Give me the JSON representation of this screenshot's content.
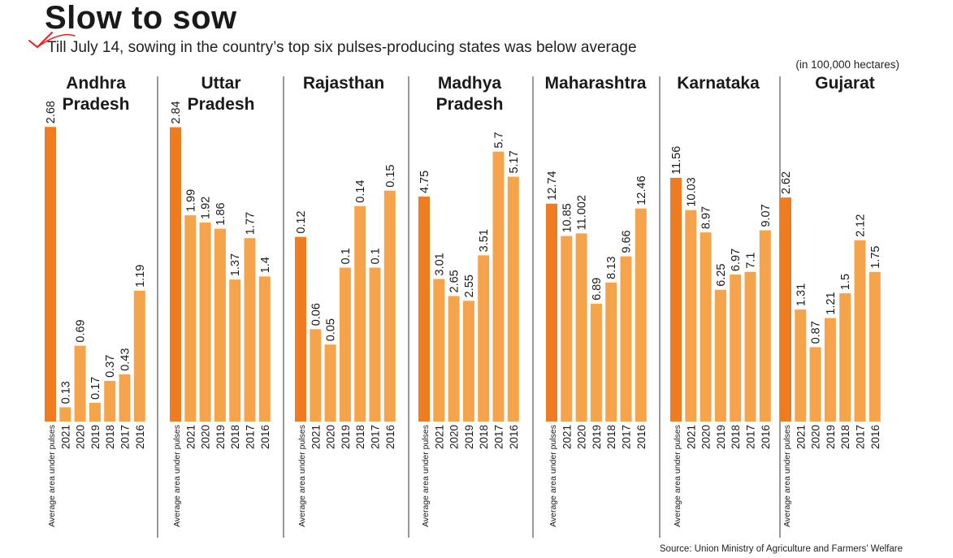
{
  "header": {
    "title": "Slow to sow",
    "subtitle": "Till July 14, sowing in the country’s top six pulses-producing states was below average",
    "unit_note": "(in 100,000 hectares)",
    "source": "Source: Union Ministry of Agriculture and Farmers’ Welfare"
  },
  "colors": {
    "average_bar": "#f07c22",
    "year_bar": "#f5a44b",
    "divider": "#333333",
    "annotation_tick": "#e8211f"
  },
  "chart_data": {
    "type": "bar",
    "title": "Slow to sow",
    "subtitle": "Till July 14, sowing in the country’s top six pulses-producing states was below average",
    "ylabel": "(in 100,000 hectares)",
    "categories": [
      "Average area under pulses",
      "2021",
      "2020",
      "2019",
      "2018",
      "2017",
      "2016"
    ],
    "grid": false,
    "panels": [
      {
        "name": "Andhra Pradesh",
        "title_lines": [
          "Andhra",
          "Pradesh"
        ],
        "values": [
          2.68,
          0.13,
          0.69,
          0.17,
          0.37,
          0.43,
          1.19
        ],
        "labels": [
          "2.68",
          "0.13",
          "0.69",
          "0.17",
          "0.37",
          "0.43",
          "1.19"
        ],
        "ylim": [
          0,
          2.8
        ]
      },
      {
        "name": "Uttar Pradesh",
        "title_lines": [
          "Uttar",
          "Pradesh"
        ],
        "values": [
          2.84,
          1.99,
          1.92,
          1.86,
          1.37,
          1.77,
          1.4
        ],
        "labels": [
          "2.84",
          "1.99",
          "1.92",
          "1.86",
          "1.37",
          "1.77",
          "1.4"
        ],
        "ylim": [
          0,
          2.97
        ]
      },
      {
        "name": "Rajasthan",
        "title_lines": [
          "Rajasthan"
        ],
        "values": [
          0.12,
          0.06,
          0.05,
          0.1,
          0.14,
          0.1,
          0.15
        ],
        "labels": [
          "0.12",
          "0.06",
          "0.05",
          "0.1",
          "0.14",
          "0.1",
          "0.15"
        ],
        "ylim": [
          0,
          0.2
        ]
      },
      {
        "name": "Madhya Pradesh",
        "title_lines": [
          "Madhya",
          "Pradesh"
        ],
        "values": [
          4.75,
          3.01,
          2.65,
          2.55,
          3.51,
          5.7,
          5.17
        ],
        "labels": [
          "4.75",
          "3.01",
          "2.65",
          "2.55",
          "3.51",
          "5.7",
          "5.17"
        ],
        "ylim": [
          0,
          6.5
        ]
      },
      {
        "name": "Maharashtra",
        "title_lines": [
          "Maharashtra"
        ],
        "values": [
          12.74,
          10.85,
          11.002,
          6.89,
          8.13,
          9.66,
          12.46
        ],
        "labels": [
          "12.74",
          "10.85",
          "11.002",
          "6.89",
          "8.13",
          "9.66",
          "12.46"
        ],
        "ylim": [
          0,
          18
        ]
      },
      {
        "name": "Karnataka",
        "title_lines": [
          "Karnataka"
        ],
        "values": [
          11.56,
          10.03,
          8.97,
          6.25,
          6.97,
          7.1,
          9.07
        ],
        "labels": [
          "11.56",
          "10.03",
          "8.97",
          "6.25",
          "6.97",
          "7.1",
          "9.07"
        ],
        "ylim": [
          0,
          14.6
        ]
      },
      {
        "name": "Gujarat",
        "title_lines": [
          "Gujarat"
        ],
        "values": [
          2.62,
          1.31,
          0.87,
          1.21,
          1.5,
          2.12,
          1.75
        ],
        "labels": [
          "2.62",
          "1.31",
          "0.87",
          "1.21",
          "1.5",
          "2.12",
          "1.75"
        ],
        "ylim": [
          0,
          3.6
        ]
      }
    ]
  }
}
